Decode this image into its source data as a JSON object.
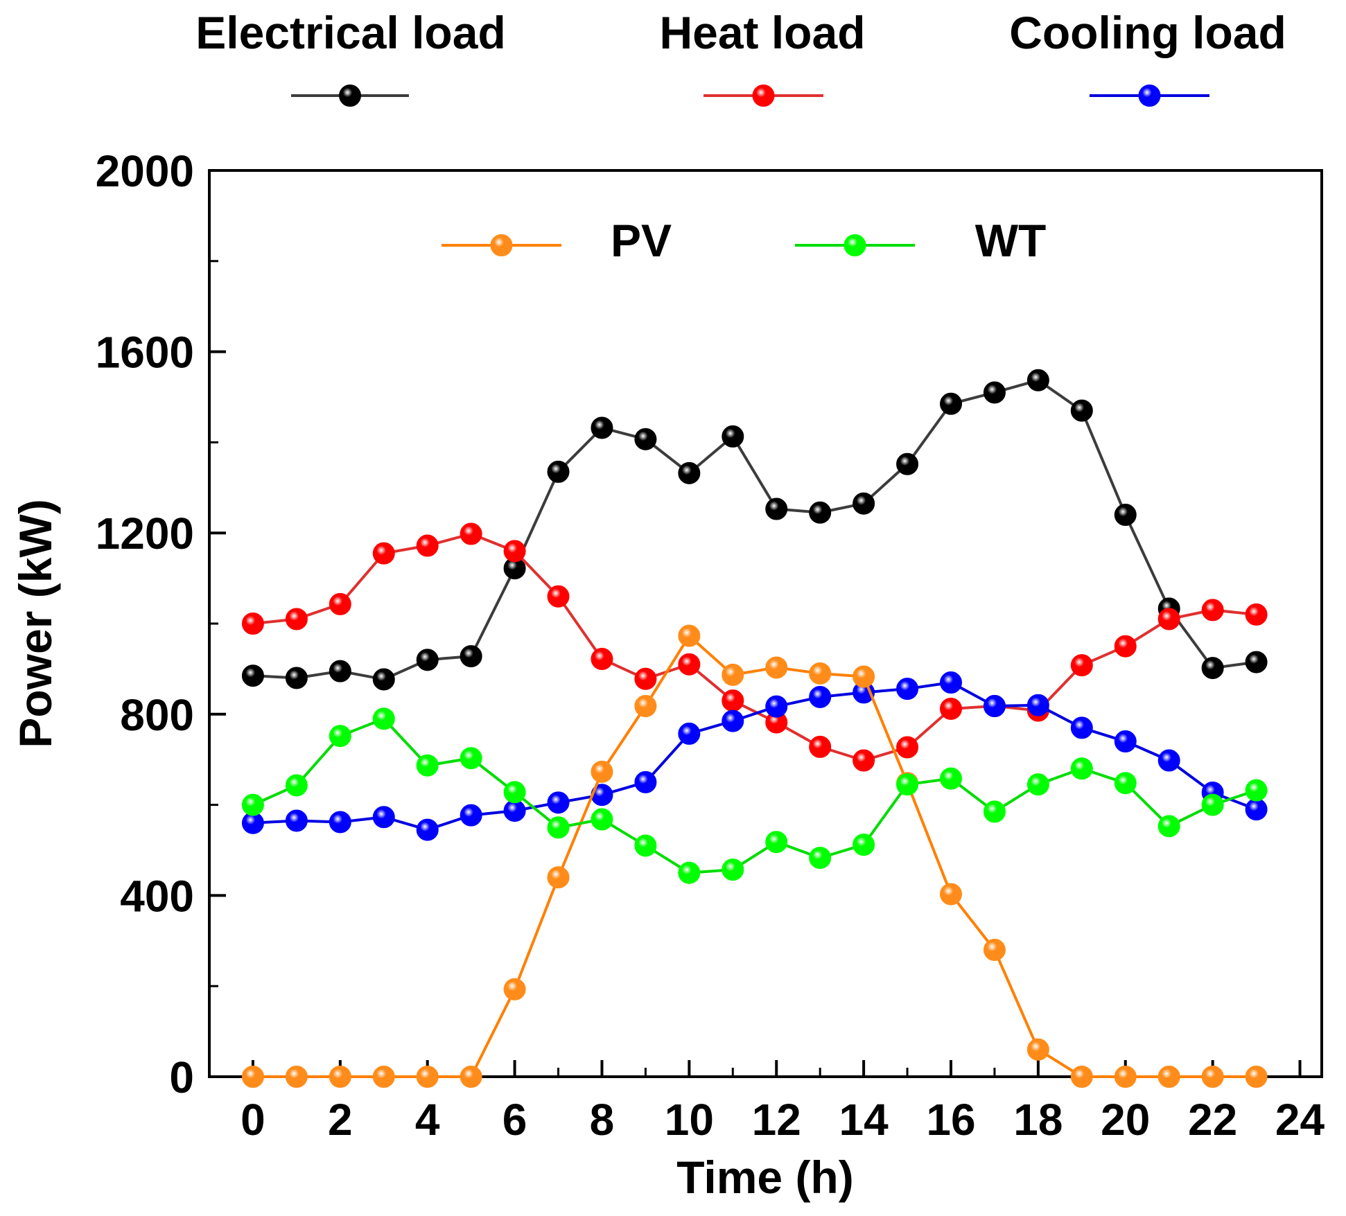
{
  "chart_data": {
    "type": "line",
    "title": "",
    "xlabel": "Time (h)",
    "ylabel": "Power (kW)",
    "xlim": [
      -1,
      24.5
    ],
    "ylim": [
      0,
      2000
    ],
    "x_ticks": [
      0,
      2,
      4,
      6,
      8,
      10,
      12,
      14,
      16,
      18,
      20,
      22,
      24
    ],
    "x_tick_labels": [
      "0",
      "2",
      "4",
      "6",
      "8",
      "10",
      "12",
      "14",
      "16",
      "18",
      "20",
      "22",
      "24"
    ],
    "x_minor_ticks": [
      1,
      3,
      5,
      7,
      9,
      11,
      13,
      15,
      17,
      19,
      21,
      23
    ],
    "y_ticks": [
      0,
      400,
      800,
      1200,
      1600,
      2000
    ],
    "y_tick_labels": [
      "0",
      "400",
      "800",
      "1200",
      "1600",
      "2000"
    ],
    "y_minor_ticks": [
      200,
      600,
      1000,
      1400,
      1800
    ],
    "x": [
      0,
      1,
      2,
      3,
      4,
      5,
      6,
      7,
      8,
      9,
      10,
      11,
      12,
      13,
      14,
      15,
      16,
      17,
      18,
      19,
      20,
      21,
      22,
      23
    ],
    "legend_top": [
      "Electrical load",
      "Heat load",
      "Cooling load"
    ],
    "legend_inner": [
      "PV",
      "WT"
    ],
    "series": [
      {
        "name": "Electrical load",
        "color": "#3c3c3c",
        "marker_color": "#000000",
        "values": [
          885,
          880,
          895,
          877,
          920,
          928,
          1122,
          1335,
          1432,
          1407,
          1332,
          1413,
          1253,
          1245,
          1265,
          1352,
          1485,
          1510,
          1537,
          1470,
          1240,
          1033,
          902,
          915
        ]
      },
      {
        "name": "Heat load",
        "color": "#e03030",
        "marker_color": "#ff0000",
        "values": [
          1000,
          1010,
          1043,
          1155,
          1172,
          1198,
          1160,
          1060,
          922,
          878,
          910,
          830,
          782,
          728,
          698,
          727,
          812,
          818,
          808,
          908,
          950,
          1010,
          1030,
          1020
        ]
      },
      {
        "name": "Cooling load",
        "color": "#0000e0",
        "marker_color": "#0000ff",
        "values": [
          560,
          565,
          562,
          573,
          545,
          577,
          587,
          605,
          622,
          650,
          757,
          785,
          817,
          838,
          848,
          856,
          870,
          818,
          820,
          770,
          740,
          698,
          627,
          590
        ]
      },
      {
        "name": "PV",
        "color": "#ff8000",
        "marker_color": "#ff8c1a",
        "values": [
          0,
          0,
          0,
          0,
          0,
          0,
          193,
          440,
          673,
          818,
          973,
          887,
          903,
          890,
          883,
          648,
          403,
          280,
          60,
          0,
          0,
          0,
          0,
          0
        ]
      },
      {
        "name": "WT",
        "color": "#00dd00",
        "marker_color": "#00ff00",
        "values": [
          600,
          643,
          752,
          790,
          687,
          703,
          628,
          550,
          568,
          510,
          450,
          457,
          518,
          483,
          512,
          645,
          658,
          585,
          645,
          680,
          648,
          553,
          600,
          632
        ]
      }
    ]
  }
}
